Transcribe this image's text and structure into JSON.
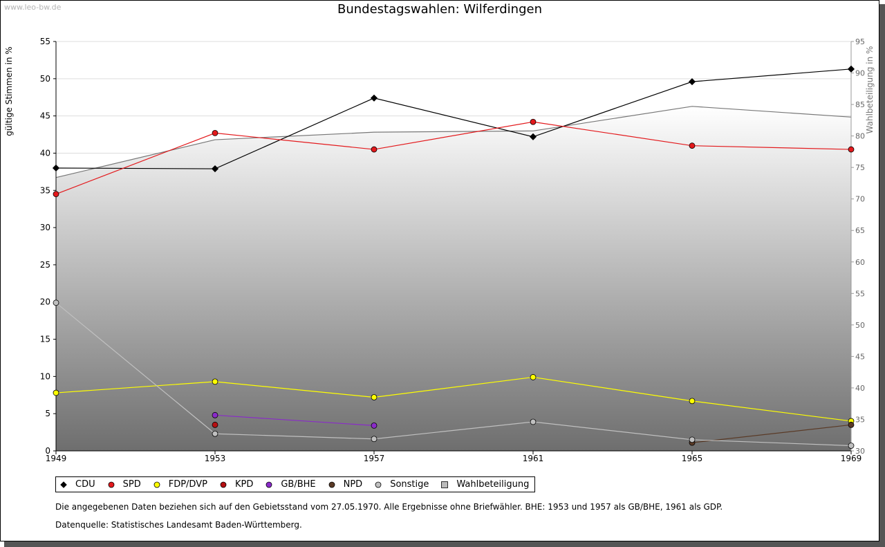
{
  "watermark": "www.leo-bw.de",
  "chart_data": {
    "type": "line",
    "title": "Bundestagswahlen: Wilferdingen",
    "ylabel": "gültige Stimmen in %",
    "y2label": "Wahlbeteiligung in %",
    "x": [
      "1949",
      "1953",
      "1957",
      "1961",
      "1965",
      "1969"
    ],
    "ylim": [
      0,
      55
    ],
    "yticks": [
      0,
      5,
      10,
      15,
      20,
      25,
      30,
      35,
      40,
      45,
      50,
      55
    ],
    "y2lim": [
      30,
      95
    ],
    "y2ticks": [
      30,
      35,
      40,
      45,
      50,
      55,
      60,
      65,
      70,
      75,
      80,
      85,
      90,
      95
    ],
    "grid": true,
    "legend_position": "bottom",
    "area": {
      "name": "Wahlbeteiligung",
      "values": [
        73.4,
        79.4,
        80.6,
        80.8,
        84.7,
        83.0
      ]
    },
    "series": [
      {
        "name": "CDU",
        "color": "#000000",
        "values": [
          38.0,
          37.9,
          47.4,
          42.2,
          49.6,
          51.3
        ]
      },
      {
        "name": "SPD",
        "color": "#e3191c",
        "values": [
          34.5,
          42.7,
          40.5,
          44.2,
          41.0,
          40.5
        ]
      },
      {
        "name": "FDP/DVP",
        "color": "#ffff00",
        "values": [
          7.8,
          9.3,
          7.2,
          9.9,
          6.7,
          4.0
        ]
      },
      {
        "name": "KPD",
        "color": "#b50f12",
        "values": [
          null,
          3.5,
          null,
          null,
          null,
          null
        ]
      },
      {
        "name": "GB/BHE",
        "color": "#8a2bc9",
        "values": [
          null,
          4.8,
          3.4,
          null,
          null,
          null
        ]
      },
      {
        "name": "NPD",
        "color": "#5a3a26",
        "values": [
          null,
          null,
          null,
          null,
          1.1,
          3.5
        ]
      },
      {
        "name": "Sonstige",
        "color": "#c0c0c0",
        "values": [
          19.9,
          2.3,
          1.6,
          3.9,
          1.5,
          0.7
        ]
      }
    ]
  },
  "legend": {
    "items": [
      {
        "label": "CDU",
        "color": "#000000",
        "marker": "diamond"
      },
      {
        "label": "SPD",
        "color": "#e3191c",
        "marker": "circle"
      },
      {
        "label": "FDP/DVP",
        "color": "#ffff00",
        "marker": "circle"
      },
      {
        "label": "KPD",
        "color": "#b50f12",
        "marker": "circle"
      },
      {
        "label": "GB/BHE",
        "color": "#8a2bc9",
        "marker": "circle"
      },
      {
        "label": "NPD",
        "color": "#5a3a26",
        "marker": "circle"
      },
      {
        "label": "Sonstige",
        "color": "#c0c0c0",
        "marker": "circle"
      },
      {
        "label": "Wahlbeteiligung",
        "color": "#bbbbbb",
        "marker": "square"
      }
    ]
  },
  "notes": {
    "line1": "Die angegebenen Daten beziehen sich auf den Gebietsstand vom 27.05.1970. Alle Ergebnisse ohne Briefwähler. BHE: 1953 und 1957 als GB/BHE, 1961 als GDP.",
    "line2": "Datenquelle: Statistisches Landesamt Baden-Württemberg."
  }
}
